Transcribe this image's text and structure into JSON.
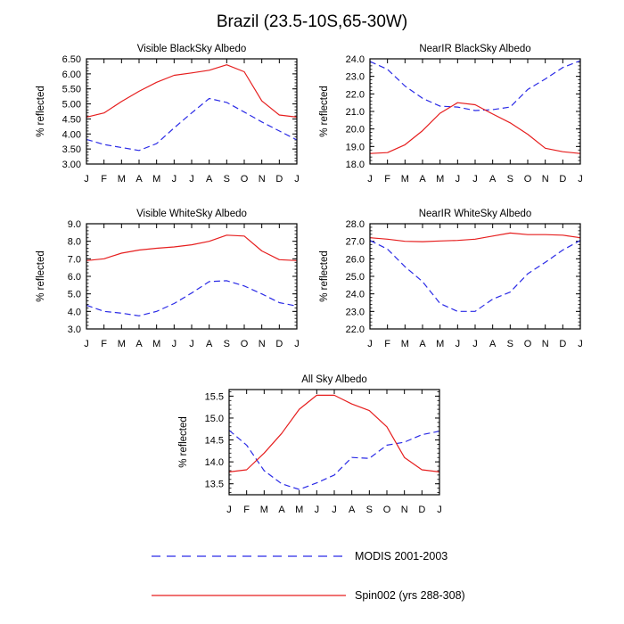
{
  "title": "Brazil (23.5-10S,65-30W)",
  "months": [
    "J",
    "F",
    "M",
    "A",
    "M",
    "J",
    "J",
    "A",
    "S",
    "O",
    "N",
    "D",
    "J"
  ],
  "legend": [
    {
      "label": "MODIS 2001-2003",
      "color": "#2a2ae6",
      "dashed": true
    },
    {
      "label": "Spin002 (yrs 288-308)",
      "color": "#e61e1e",
      "dashed": false
    }
  ],
  "chart_data": [
    {
      "type": "line",
      "title": "Visible BlackSky Albedo",
      "ylabel": "% reflected",
      "ylim": [
        3.0,
        6.5
      ],
      "yticks": [
        "3.00",
        "3.50",
        "4.00",
        "4.50",
        "5.00",
        "5.50",
        "6.00",
        "6.50"
      ],
      "x": [
        "J",
        "F",
        "M",
        "A",
        "M",
        "J",
        "J",
        "A",
        "S",
        "O",
        "N",
        "D",
        "J"
      ],
      "series": [
        {
          "name": "MODIS 2001-2003",
          "values": [
            3.82,
            3.65,
            3.55,
            3.45,
            3.68,
            4.2,
            4.7,
            5.18,
            5.05,
            4.73,
            4.4,
            4.1,
            3.8
          ]
        },
        {
          "name": "Spin002 (yrs 288-308)",
          "values": [
            4.56,
            4.7,
            5.08,
            5.42,
            5.72,
            5.95,
            6.03,
            6.12,
            6.3,
            6.07,
            5.1,
            4.63,
            4.56
          ]
        }
      ]
    },
    {
      "type": "line",
      "title": "NearIR BlackSky Albedo",
      "ylabel": "% reflected",
      "ylim": [
        18.0,
        24.0
      ],
      "yticks": [
        "18.0",
        "19.0",
        "20.0",
        "21.0",
        "22.0",
        "23.0",
        "24.0"
      ],
      "x": [
        "J",
        "F",
        "M",
        "A",
        "M",
        "J",
        "J",
        "A",
        "S",
        "O",
        "N",
        "D",
        "J"
      ],
      "series": [
        {
          "name": "MODIS 2001-2003",
          "values": [
            23.85,
            23.4,
            22.45,
            21.75,
            21.3,
            21.25,
            21.05,
            21.1,
            21.25,
            22.25,
            22.85,
            23.5,
            23.9
          ]
        },
        {
          "name": "Spin002 (yrs 288-308)",
          "values": [
            18.6,
            18.65,
            19.1,
            19.9,
            20.9,
            21.5,
            21.38,
            20.85,
            20.35,
            19.7,
            18.9,
            18.7,
            18.6
          ]
        }
      ]
    },
    {
      "type": "line",
      "title": "Visible WhiteSky Albedo",
      "ylabel": "% reflected",
      "ylim": [
        3.0,
        9.0
      ],
      "yticks": [
        "3.0",
        "4.0",
        "5.0",
        "6.0",
        "7.0",
        "8.0",
        "9.0"
      ],
      "x": [
        "J",
        "F",
        "M",
        "A",
        "M",
        "J",
        "J",
        "A",
        "S",
        "O",
        "N",
        "D",
        "J"
      ],
      "series": [
        {
          "name": "MODIS 2001-2003",
          "values": [
            4.35,
            4.0,
            3.9,
            3.75,
            4.0,
            4.45,
            5.05,
            5.7,
            5.75,
            5.45,
            5.0,
            4.5,
            4.3
          ]
        },
        {
          "name": "Spin002 (yrs 288-308)",
          "values": [
            6.9,
            7.0,
            7.32,
            7.5,
            7.6,
            7.68,
            7.8,
            8.0,
            8.35,
            8.3,
            7.45,
            6.95,
            6.9
          ]
        }
      ]
    },
    {
      "type": "line",
      "title": "NearIR WhiteSky Albedo",
      "ylabel": "% reflected",
      "ylim": [
        22.0,
        28.0
      ],
      "yticks": [
        "22.0",
        "23.0",
        "24.0",
        "25.0",
        "26.0",
        "27.0",
        "28.0"
      ],
      "x": [
        "J",
        "F",
        "M",
        "A",
        "M",
        "J",
        "J",
        "A",
        "S",
        "O",
        "N",
        "D",
        "J"
      ],
      "series": [
        {
          "name": "MODIS 2001-2003",
          "values": [
            27.05,
            26.55,
            25.55,
            24.7,
            23.45,
            23.0,
            23.0,
            23.7,
            24.1,
            25.15,
            25.8,
            26.5,
            27.05
          ]
        },
        {
          "name": "Spin002 (yrs 288-308)",
          "values": [
            27.2,
            27.12,
            27.0,
            26.98,
            27.02,
            27.05,
            27.12,
            27.3,
            27.47,
            27.38,
            27.38,
            27.35,
            27.2
          ]
        }
      ]
    },
    {
      "type": "line",
      "title": "All Sky Albedo",
      "ylabel": "% reflected",
      "ylim": [
        13.25,
        15.65
      ],
      "yticks": [
        "13.5",
        "14.0",
        "14.5",
        "15.0",
        "15.5"
      ],
      "x": [
        "J",
        "F",
        "M",
        "A",
        "M",
        "J",
        "J",
        "A",
        "S",
        "O",
        "N",
        "D",
        "J"
      ],
      "series": [
        {
          "name": "MODIS 2001-2003",
          "values": [
            14.72,
            14.38,
            13.8,
            13.5,
            13.37,
            13.52,
            13.7,
            14.1,
            14.08,
            14.38,
            14.45,
            14.62,
            14.7
          ]
        },
        {
          "name": "Spin002 (yrs 288-308)",
          "values": [
            13.77,
            13.82,
            14.2,
            14.65,
            15.2,
            15.52,
            15.52,
            15.32,
            15.17,
            14.8,
            14.1,
            13.82,
            13.77
          ]
        }
      ]
    }
  ]
}
